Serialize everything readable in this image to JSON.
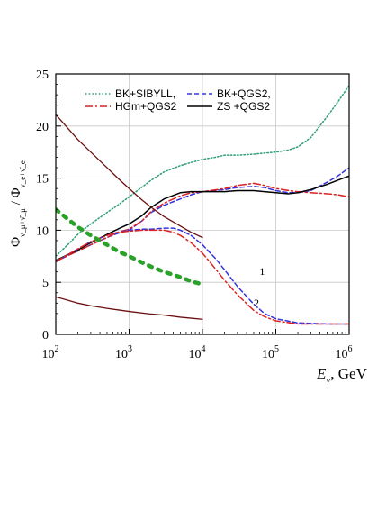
{
  "chart_data": {
    "type": "line",
    "xscale": "log",
    "xlim": [
      100,
      1000000
    ],
    "ylim": [
      0,
      25
    ],
    "grid": true,
    "legend_position": "top",
    "xlabel_var": "E",
    "xlabel_sub": "ν",
    "xlabel_unit": ", GeV",
    "ylabel_num": "Φ",
    "ylabel_num_sub": "ν_μ+ν̄_μ",
    "ylabel_sep": " / ",
    "ylabel_den": "Φ",
    "ylabel_den_sub": "ν_e+ν̄_e",
    "x_ticks": [
      {
        "value": 100,
        "base": "10",
        "exp": "2"
      },
      {
        "value": 1000,
        "base": "10",
        "exp": "3"
      },
      {
        "value": 10000,
        "base": "10",
        "exp": "4"
      },
      {
        "value": 100000,
        "base": "10",
        "exp": "5"
      },
      {
        "value": 1000000,
        "base": "10",
        "exp": "6"
      }
    ],
    "y_ticks": [
      "0",
      "5",
      "10",
      "15",
      "20",
      "25"
    ],
    "series": [
      {
        "name": "BK+SIBYLL,",
        "color": "#2e9e75",
        "dash": "1.5,2.2",
        "width": 1.5,
        "x": [
          100,
          150,
          200,
          300,
          500,
          700,
          1000,
          2000,
          3000,
          5000,
          7000,
          10000,
          15000,
          20000,
          30000,
          50000,
          70000,
          100000,
          150000,
          200000,
          300000,
          500000,
          700000,
          1000000
        ],
        "y": [
          7.5,
          8.7,
          9.6,
          10.6,
          11.7,
          12.4,
          13.2,
          14.8,
          15.6,
          16.2,
          16.5,
          16.8,
          17.0,
          17.2,
          17.2,
          17.3,
          17.4,
          17.5,
          17.7,
          18.0,
          18.9,
          20.9,
          22.3,
          23.9
        ]
      },
      {
        "name": "BK+QGS2,",
        "color": "#3333dd",
        "dash": "5,3",
        "width": 1.5,
        "x": [
          100,
          150,
          200,
          300,
          500,
          700,
          1000,
          1500,
          2000,
          3000,
          5000,
          7000,
          10000,
          20000,
          30000,
          50000,
          70000,
          100000,
          150000,
          200000,
          300000,
          500000,
          700000,
          1000000
        ],
        "y": [
          7.0,
          7.6,
          8.0,
          8.6,
          9.3,
          9.7,
          10.0,
          10.9,
          11.7,
          12.4,
          13.0,
          13.4,
          13.7,
          13.9,
          14.1,
          14.2,
          14.1,
          13.8,
          13.6,
          13.6,
          13.8,
          14.6,
          15.2,
          16.0
        ]
      },
      {
        "name": "HGm+QGS2",
        "color": "#dd2222",
        "dash": "8,3,2,3",
        "width": 1.5,
        "x": [
          100,
          150,
          200,
          300,
          500,
          700,
          1000,
          1500,
          2000,
          3000,
          5000,
          7000,
          10000,
          20000,
          30000,
          50000,
          70000,
          100000,
          150000,
          200000,
          300000,
          500000,
          700000,
          1000000
        ],
        "y": [
          7.0,
          7.6,
          8.0,
          8.6,
          9.3,
          9.8,
          10.1,
          10.9,
          11.8,
          12.6,
          13.3,
          13.6,
          13.7,
          14.0,
          14.3,
          14.5,
          14.3,
          14.0,
          13.8,
          13.7,
          13.6,
          13.5,
          13.4,
          13.2
        ]
      },
      {
        "name": "ZS +QGS2",
        "color": "#000000",
        "dash": "",
        "width": 1.5,
        "x": [
          100,
          150,
          200,
          300,
          500,
          700,
          1000,
          1500,
          2000,
          3000,
          5000,
          7000,
          10000,
          20000,
          30000,
          50000,
          70000,
          100000,
          150000,
          200000,
          300000,
          500000,
          700000,
          1000000
        ],
        "y": [
          7.1,
          7.7,
          8.1,
          8.8,
          9.6,
          10.1,
          10.6,
          11.4,
          12.2,
          13.0,
          13.6,
          13.7,
          13.7,
          13.7,
          13.8,
          13.8,
          13.7,
          13.6,
          13.5,
          13.6,
          13.9,
          14.4,
          14.8,
          15.2
        ]
      },
      {
        "name": "",
        "color": "#3333dd",
        "dash": "5,3",
        "width": 1.5,
        "x": [
          100,
          150,
          200,
          300,
          500,
          700,
          1000,
          1500,
          2000,
          3000,
          4000,
          5000,
          7000,
          10000,
          15000,
          20000,
          30000,
          50000,
          70000,
          100000,
          200000,
          500000,
          1000000
        ],
        "y": [
          7.0,
          7.7,
          8.2,
          8.9,
          9.5,
          9.8,
          10.0,
          10.1,
          10.1,
          10.2,
          10.2,
          10.0,
          9.5,
          8.6,
          7.3,
          6.2,
          4.6,
          2.9,
          2.0,
          1.5,
          1.1,
          1.0,
          1.0
        ]
      },
      {
        "name": "",
        "color": "#dd2222",
        "dash": "8,3,2,3",
        "width": 1.5,
        "x": [
          100,
          150,
          200,
          300,
          500,
          700,
          1000,
          1500,
          2000,
          3000,
          4000,
          5000,
          7000,
          10000,
          15000,
          20000,
          30000,
          50000,
          70000,
          100000,
          200000,
          500000,
          1000000
        ],
        "y": [
          7.0,
          7.7,
          8.2,
          8.9,
          9.5,
          9.8,
          9.9,
          10.0,
          10.0,
          10.0,
          9.8,
          9.5,
          8.8,
          7.8,
          6.3,
          5.2,
          3.8,
          2.3,
          1.7,
          1.3,
          1.0,
          1.0,
          1.0
        ]
      },
      {
        "name": "",
        "color": "#6b1010",
        "dash": "",
        "width": 1.3,
        "x": [
          100,
          150,
          200,
          300,
          500,
          700,
          1000,
          1500,
          2000,
          3000,
          5000,
          7000,
          10000
        ],
        "y": [
          21.1,
          19.7,
          18.7,
          17.5,
          16.0,
          15.0,
          14.0,
          12.9,
          12.2,
          11.3,
          10.4,
          9.8,
          9.3
        ]
      },
      {
        "name": "",
        "color": "#6b1010",
        "dash": "",
        "width": 1.3,
        "x": [
          100,
          150,
          200,
          300,
          500,
          700,
          1000,
          2000,
          3000,
          5000,
          7000,
          10000
        ],
        "y": [
          3.6,
          3.25,
          3.0,
          2.75,
          2.5,
          2.35,
          2.2,
          1.95,
          1.85,
          1.65,
          1.55,
          1.45
        ]
      },
      {
        "name": "",
        "color": "#2aa22a",
        "dash": "4,7",
        "width": 4.5,
        "x": [
          100,
          150,
          200,
          300,
          500,
          700,
          1000,
          1500,
          2000,
          3000,
          5000,
          7000,
          10000
        ],
        "y": [
          12.0,
          11.0,
          10.3,
          9.5,
          8.6,
          8.0,
          7.5,
          6.9,
          6.5,
          6.0,
          5.5,
          5.1,
          4.8
        ]
      }
    ],
    "annotations": [
      {
        "text": "1",
        "x": 60000,
        "y": 5.7
      },
      {
        "text": "2",
        "x": 50000,
        "y": 2.7
      }
    ],
    "legend_order": [
      0,
      2,
      1,
      3
    ]
  }
}
